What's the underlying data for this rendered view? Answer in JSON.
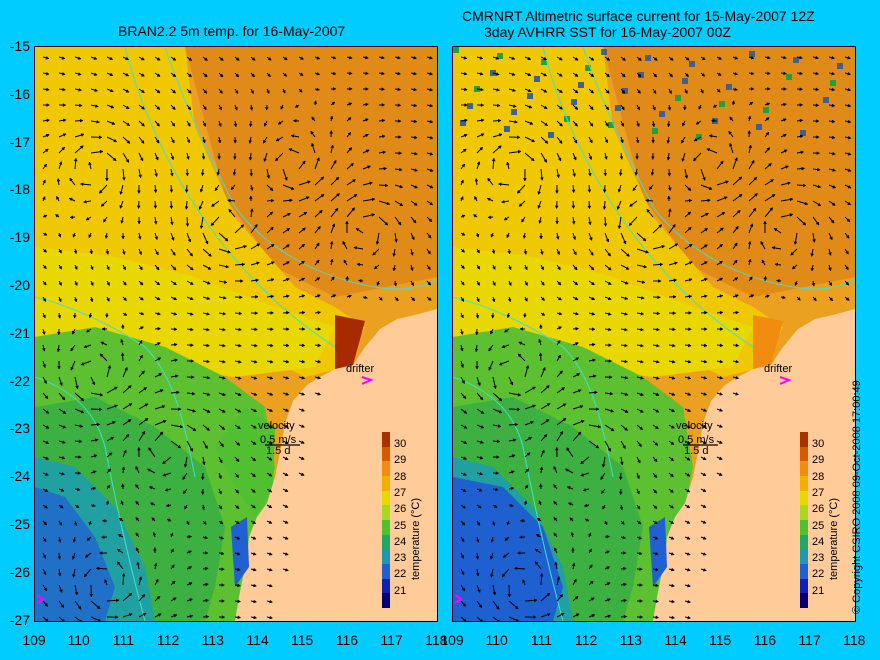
{
  "left_panel": {
    "title": "BRAN2.2 5m temp. for 16-May-2007",
    "velocity_label": "velocity",
    "speed_label": "0.5 m/s",
    "duration_label": "1.5 d",
    "drifter_label": "drifter"
  },
  "right_panel": {
    "title_line1": "CMRNRT Altimetric surface current for 15-May-2007 12Z",
    "title_line2": "3day AVHRR SST for 16-May-2007 00Z",
    "velocity_label": "velocity",
    "speed_label": "0.5 m/s",
    "duration_label": "1.5 d",
    "drifter_label": "drifter"
  },
  "axes": {
    "y_ticks": [
      "-15",
      "-16",
      "-17",
      "-18",
      "-19",
      "-20",
      "-21",
      "-22",
      "-23",
      "-24",
      "-25",
      "-26",
      "-27"
    ],
    "x_ticks_left": [
      "109",
      "110",
      "111",
      "112",
      "113",
      "114",
      "115",
      "116",
      "117",
      "118"
    ],
    "x_ticks_right": [
      "109",
      "110",
      "111",
      "112",
      "113",
      "114",
      "115",
      "116",
      "117",
      "118"
    ]
  },
  "colorbar": {
    "label": "temperature (°C)",
    "ticks": [
      "30",
      "29",
      "28",
      "27",
      "26",
      "25",
      "24",
      "23",
      "22",
      "21"
    ],
    "colors": [
      "#a83200",
      "#d65a00",
      "#f08c10",
      "#f0b000",
      "#e6d800",
      "#a8d820",
      "#50c030",
      "#20a868",
      "#2098b0",
      "#2060d0",
      "#1020b0",
      "#080070"
    ]
  },
  "copyright": "© Copyright CSIRO 2008   09-Oct-2008 17:00:49",
  "colors": {
    "background": "#00ccff",
    "land": "#ffcc99",
    "drifter": "#ff00ff",
    "bathymetry": "#40e0d0"
  }
}
